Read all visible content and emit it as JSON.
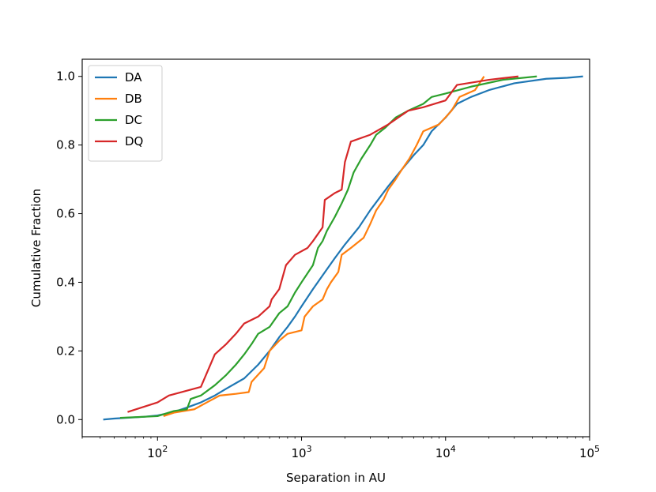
{
  "chart_data": {
    "type": "line",
    "xscale": "log",
    "xlim": [
      30,
      100000
    ],
    "ylim": [
      -0.05,
      1.05
    ],
    "xlabel": "Separation in AU",
    "ylabel": "Cumulative Fraction",
    "x_ticks": [
      {
        "value": 100,
        "base": "10",
        "exp": "2"
      },
      {
        "value": 1000,
        "base": "10",
        "exp": "3"
      },
      {
        "value": 10000,
        "base": "10",
        "exp": "4"
      },
      {
        "value": 100000,
        "base": "10",
        "exp": "5"
      }
    ],
    "y_ticks": [
      {
        "value": 0.0,
        "label": "0.0"
      },
      {
        "value": 0.2,
        "label": "0.2"
      },
      {
        "value": 0.4,
        "label": "0.4"
      },
      {
        "value": 0.6,
        "label": "0.6"
      },
      {
        "value": 0.8,
        "label": "0.8"
      },
      {
        "value": 1.0,
        "label": "1.0"
      }
    ],
    "grid": false,
    "legend_position": "top-left",
    "series": [
      {
        "name": "DA",
        "color": "#1f77b4",
        "points": [
          [
            42,
            0.0
          ],
          [
            50,
            0.003
          ],
          [
            60,
            0.005
          ],
          [
            80,
            0.008
          ],
          [
            100,
            0.012
          ],
          [
            130,
            0.022
          ],
          [
            160,
            0.035
          ],
          [
            200,
            0.05
          ],
          [
            250,
            0.07
          ],
          [
            300,
            0.09
          ],
          [
            400,
            0.12
          ],
          [
            500,
            0.16
          ],
          [
            600,
            0.2
          ],
          [
            700,
            0.24
          ],
          [
            800,
            0.27
          ],
          [
            900,
            0.3
          ],
          [
            1000,
            0.33
          ],
          [
            1200,
            0.38
          ],
          [
            1400,
            0.42
          ],
          [
            1700,
            0.47
          ],
          [
            2000,
            0.51
          ],
          [
            2500,
            0.56
          ],
          [
            3000,
            0.61
          ],
          [
            4000,
            0.68
          ],
          [
            5000,
            0.73
          ],
          [
            6000,
            0.77
          ],
          [
            7000,
            0.8
          ],
          [
            8000,
            0.84
          ],
          [
            10000,
            0.88
          ],
          [
            12000,
            0.92
          ],
          [
            15000,
            0.94
          ],
          [
            20000,
            0.96
          ],
          [
            30000,
            0.98
          ],
          [
            50000,
            0.993
          ],
          [
            70000,
            0.996
          ],
          [
            90000,
            1.0
          ]
        ]
      },
      {
        "name": "DB",
        "color": "#ff7f0e",
        "points": [
          [
            110,
            0.01
          ],
          [
            130,
            0.02
          ],
          [
            180,
            0.03
          ],
          [
            220,
            0.05
          ],
          [
            270,
            0.07
          ],
          [
            350,
            0.075
          ],
          [
            430,
            0.08
          ],
          [
            450,
            0.11
          ],
          [
            550,
            0.15
          ],
          [
            600,
            0.2
          ],
          [
            700,
            0.23
          ],
          [
            800,
            0.25
          ],
          [
            1000,
            0.26
          ],
          [
            1050,
            0.3
          ],
          [
            1200,
            0.33
          ],
          [
            1400,
            0.35
          ],
          [
            1500,
            0.38
          ],
          [
            1600,
            0.4
          ],
          [
            1800,
            0.43
          ],
          [
            1900,
            0.48
          ],
          [
            2200,
            0.5
          ],
          [
            2700,
            0.53
          ],
          [
            3000,
            0.57
          ],
          [
            3300,
            0.61
          ],
          [
            3700,
            0.64
          ],
          [
            4000,
            0.67
          ],
          [
            4500,
            0.7
          ],
          [
            5000,
            0.73
          ],
          [
            5600,
            0.76
          ],
          [
            6300,
            0.8
          ],
          [
            7000,
            0.84
          ],
          [
            9000,
            0.86
          ],
          [
            11000,
            0.9
          ],
          [
            12500,
            0.94
          ],
          [
            16000,
            0.96
          ],
          [
            18500,
            1.0
          ]
        ]
      },
      {
        "name": "DC",
        "color": "#2ca02c",
        "points": [
          [
            55,
            0.005
          ],
          [
            100,
            0.01
          ],
          [
            130,
            0.025
          ],
          [
            160,
            0.03
          ],
          [
            170,
            0.06
          ],
          [
            200,
            0.07
          ],
          [
            250,
            0.1
          ],
          [
            300,
            0.13
          ],
          [
            350,
            0.16
          ],
          [
            400,
            0.19
          ],
          [
            450,
            0.22
          ],
          [
            500,
            0.25
          ],
          [
            600,
            0.27
          ],
          [
            700,
            0.31
          ],
          [
            800,
            0.33
          ],
          [
            900,
            0.37
          ],
          [
            1000,
            0.4
          ],
          [
            1200,
            0.45
          ],
          [
            1300,
            0.5
          ],
          [
            1400,
            0.52
          ],
          [
            1500,
            0.55
          ],
          [
            1700,
            0.59
          ],
          [
            1900,
            0.63
          ],
          [
            2100,
            0.67
          ],
          [
            2300,
            0.72
          ],
          [
            2600,
            0.76
          ],
          [
            3000,
            0.8
          ],
          [
            3300,
            0.83
          ],
          [
            3800,
            0.85
          ],
          [
            4500,
            0.88
          ],
          [
            5500,
            0.9
          ],
          [
            7000,
            0.92
          ],
          [
            8000,
            0.94
          ],
          [
            10000,
            0.95
          ],
          [
            15000,
            0.97
          ],
          [
            25000,
            0.99
          ],
          [
            43000,
            1.0
          ]
        ]
      },
      {
        "name": "DQ",
        "color": "#d62728",
        "points": [
          [
            62,
            0.022
          ],
          [
            100,
            0.05
          ],
          [
            120,
            0.07
          ],
          [
            200,
            0.095
          ],
          [
            250,
            0.19
          ],
          [
            300,
            0.22
          ],
          [
            350,
            0.25
          ],
          [
            400,
            0.28
          ],
          [
            500,
            0.3
          ],
          [
            600,
            0.33
          ],
          [
            620,
            0.35
          ],
          [
            700,
            0.38
          ],
          [
            780,
            0.45
          ],
          [
            900,
            0.48
          ],
          [
            1100,
            0.5
          ],
          [
            1200,
            0.52
          ],
          [
            1400,
            0.56
          ],
          [
            1450,
            0.64
          ],
          [
            1700,
            0.66
          ],
          [
            1900,
            0.67
          ],
          [
            2000,
            0.75
          ],
          [
            2200,
            0.81
          ],
          [
            3000,
            0.83
          ],
          [
            4000,
            0.86
          ],
          [
            5500,
            0.9
          ],
          [
            7000,
            0.91
          ],
          [
            10000,
            0.93
          ],
          [
            12000,
            0.975
          ],
          [
            20000,
            0.99
          ],
          [
            32000,
            1.0
          ]
        ]
      }
    ]
  }
}
